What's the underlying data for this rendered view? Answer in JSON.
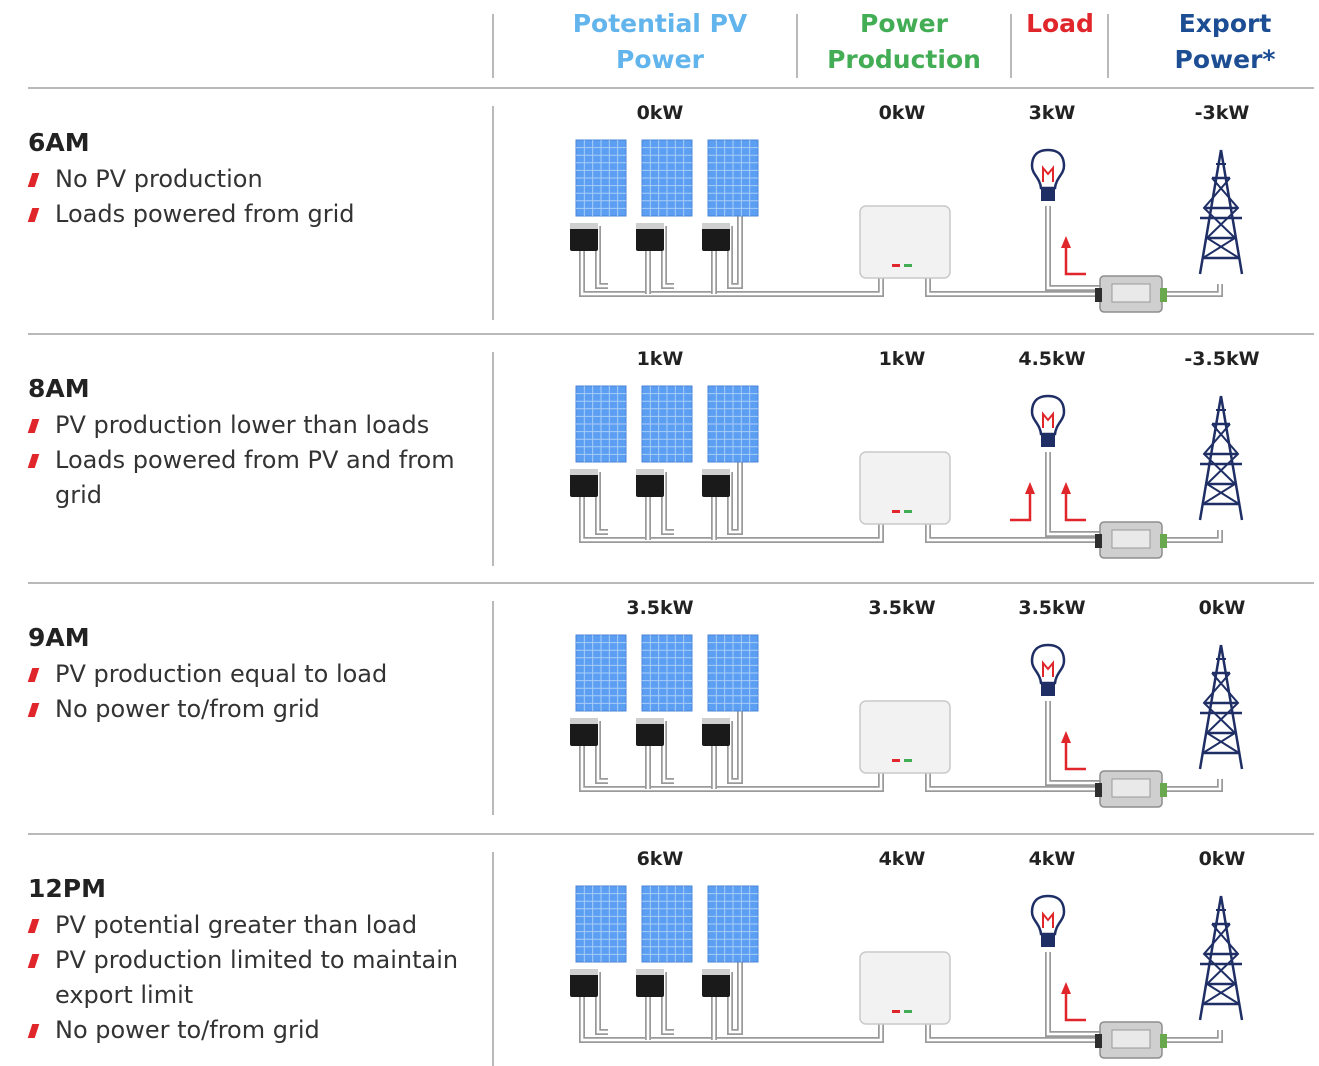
{
  "header": {
    "col_potential": {
      "line1": "Potential PV",
      "line2": "Power",
      "color": "#62b4ec"
    },
    "col_production": {
      "line1": "Power",
      "line2": "Production",
      "color": "#43ad55"
    },
    "col_load": {
      "line1": "Load",
      "color": "#e0262b"
    },
    "col_export": {
      "line1": "Export",
      "line2": "Power*",
      "color": "#1d4e94"
    }
  },
  "icons": {
    "panel": "solar-panel-icon",
    "optimizer": "power-optimizer-icon",
    "inverter": "inverter-icon",
    "meter": "energy-meter-icon",
    "bulb": "light-bulb-icon",
    "tower": "transmission-tower-icon",
    "arrow": "flow-arrow-icon"
  },
  "colors": {
    "panel_blue": "#5b9ef2",
    "wire": "#9a9a9a",
    "arrow_red": "#e0262b",
    "tower_navy": "#1f2f66",
    "separator": "#b9b9b9"
  },
  "rows": [
    {
      "time": "6AM",
      "bullets": [
        "No PV production",
        "Loads powered from grid"
      ],
      "potential": "0kW",
      "production": "0kW",
      "load": "3kW",
      "export": "-3kW",
      "arrows": 1
    },
    {
      "time": "8AM",
      "bullets": [
        "PV production lower than loads",
        "Loads powered from PV and from grid"
      ],
      "potential": "1kW",
      "production": "1kW",
      "load": "4.5kW",
      "export": "-3.5kW",
      "arrows": 2
    },
    {
      "time": "9AM",
      "bullets": [
        "PV production equal to load",
        "No power to/from grid"
      ],
      "potential": "3.5kW",
      "production": "3.5kW",
      "load": "3.5kW",
      "export": "0kW",
      "arrows": 1
    },
    {
      "time": "12PM",
      "bullets": [
        "PV potential greater than load",
        "PV production limited to maintain export limit",
        "No power to/from grid"
      ],
      "potential": "6kW",
      "production": "4kW",
      "load": "4kW",
      "export": "0kW",
      "arrows": 1
    }
  ]
}
